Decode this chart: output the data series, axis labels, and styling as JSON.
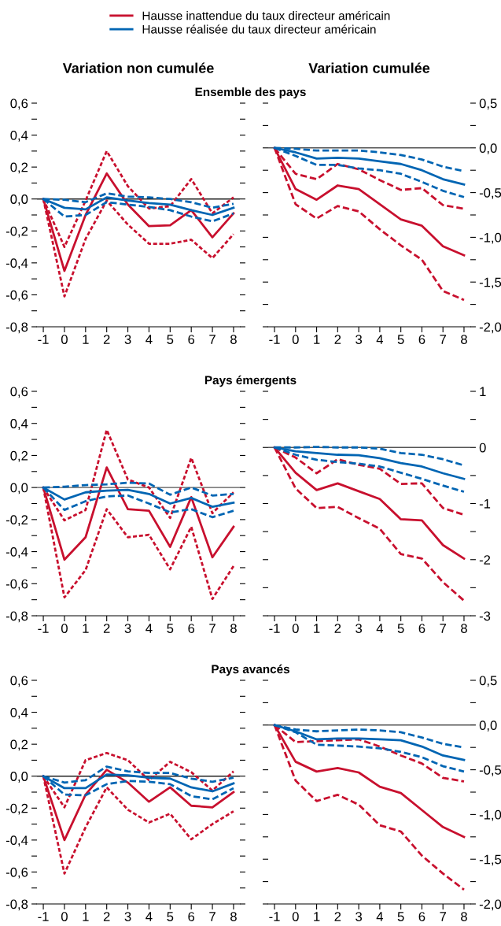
{
  "chart_data": [
    {
      "type": "line",
      "title": "Variation non cumulée",
      "subtitle": "Ensemble des pays",
      "legend": "top",
      "x": [
        -1,
        0,
        1,
        2,
        3,
        4,
        5,
        6,
        7,
        8
      ],
      "xlim": [
        -1.3,
        8.3
      ],
      "xticks": [
        -1,
        0,
        1,
        2,
        3,
        4,
        5,
        6,
        7,
        8
      ],
      "ylim": [
        -0.8,
        0.6
      ],
      "yticks": [
        {
          "value": 0.6,
          "label": "0,6"
        },
        {
          "value": 0.5,
          "label": null
        },
        {
          "value": 0.4,
          "label": "0,4"
        },
        {
          "value": 0.3,
          "label": null
        },
        {
          "value": 0.2,
          "label": "0,2"
        },
        {
          "value": 0.1,
          "label": null
        },
        {
          "value": 0,
          "label": "0,0"
        },
        {
          "value": -0.1,
          "label": null
        },
        {
          "value": -0.2,
          "label": "-0,2"
        },
        {
          "value": -0.3,
          "label": null
        },
        {
          "value": -0.4,
          "label": "-0,4"
        },
        {
          "value": -0.5,
          "label": null
        },
        {
          "value": -0.6,
          "label": "-0,6"
        },
        {
          "value": -0.7,
          "label": null
        },
        {
          "value": -0.8,
          "label": "-0,8"
        }
      ],
      "ref_lines": [
        {
          "axis": "y",
          "value": 0,
          "color": "#222222"
        }
      ],
      "series": [
        {
          "name": "Hausse inattendue du taux directeur américain",
          "color": "#c8102e",
          "line_style": "solid",
          "values": [
            0,
            -0.45,
            -0.1,
            0.16,
            -0.035,
            -0.17,
            -0.165,
            -0.07,
            -0.24,
            -0.09
          ]
        },
        {
          "color": "#c8102e",
          "line_style": "dotted",
          "values": [
            0,
            -0.3,
            -0.01,
            0.3,
            0.08,
            -0.06,
            -0.045,
            0.125,
            -0.09,
            0.01
          ]
        },
        {
          "color": "#c8102e",
          "line_style": "dotted",
          "values": [
            0,
            -0.61,
            -0.25,
            -0.01,
            -0.16,
            -0.28,
            -0.28,
            -0.255,
            -0.37,
            -0.22
          ]
        },
        {
          "name": "Hausse réalisée du taux directeur américain",
          "color": "#0065b3",
          "line_style": "solid",
          "values": [
            0,
            -0.055,
            -0.065,
            0.01,
            -0.01,
            -0.025,
            -0.035,
            -0.07,
            -0.1,
            -0.055
          ]
        },
        {
          "color": "#0065b3",
          "line_style": "dashed",
          "values": [
            0,
            -0.005,
            -0.02,
            0.035,
            0.015,
            0.01,
            0,
            -0.02,
            -0.055,
            -0.03
          ]
        },
        {
          "color": "#0065b3",
          "line_style": "dashed",
          "values": [
            0,
            -0.11,
            -0.1,
            -0.02,
            -0.035,
            -0.05,
            -0.07,
            -0.11,
            -0.14,
            -0.09
          ]
        }
      ]
    },
    {
      "type": "line",
      "title": "Variation cumulée",
      "x": [
        -1,
        0,
        1,
        2,
        3,
        4,
        5,
        6,
        7,
        8
      ],
      "xlim": [
        -1.3,
        8.3
      ],
      "xticks": [
        -1,
        0,
        1,
        2,
        3,
        4,
        5,
        6,
        7,
        8
      ],
      "y2lim": [
        -2.0,
        0.5
      ],
      "y2ticks": [
        {
          "value": 0.5,
          "label": "0,5"
        },
        {
          "value": 0.25,
          "label": null
        },
        {
          "value": 0,
          "label": "0,0"
        },
        {
          "value": -0.25,
          "label": null
        },
        {
          "value": -0.5,
          "label": "-0,5"
        },
        {
          "value": -0.75,
          "label": null
        },
        {
          "value": -1.0,
          "label": "-1,0"
        },
        {
          "value": -1.25,
          "label": null
        },
        {
          "value": -1.5,
          "label": "-1,5"
        },
        {
          "value": -1.75,
          "label": null
        },
        {
          "value": -2.0,
          "label": "-2,0"
        }
      ],
      "ref_lines": [
        {
          "axis": "y2",
          "value": 0,
          "color": "#555555"
        }
      ],
      "series": [
        {
          "axis": "y2",
          "color": "#c8102e",
          "line_style": "solid",
          "values": [
            0,
            -0.46,
            -0.58,
            -0.42,
            -0.46,
            -0.63,
            -0.8,
            -0.87,
            -1.1,
            -1.2
          ]
        },
        {
          "axis": "y2",
          "color": "#c8102e",
          "line_style": "dashed",
          "values": [
            0,
            -0.29,
            -0.35,
            -0.18,
            -0.24,
            -0.36,
            -0.47,
            -0.45,
            -0.64,
            -0.68
          ]
        },
        {
          "axis": "y2",
          "color": "#c8102e",
          "line_style": "dashed",
          "values": [
            0,
            -0.63,
            -0.79,
            -0.65,
            -0.71,
            -0.91,
            -1.09,
            -1.25,
            -1.6,
            -1.7
          ]
        },
        {
          "axis": "y2",
          "color": "#0065b3",
          "line_style": "solid",
          "values": [
            0,
            -0.05,
            -0.12,
            -0.11,
            -0.12,
            -0.15,
            -0.18,
            -0.25,
            -0.35,
            -0.41
          ]
        },
        {
          "axis": "y2",
          "color": "#0065b3",
          "line_style": "dashed",
          "values": [
            0,
            -0.01,
            -0.03,
            -0.03,
            -0.03,
            -0.05,
            -0.08,
            -0.13,
            -0.21,
            -0.26
          ]
        },
        {
          "axis": "y2",
          "color": "#0065b3",
          "line_style": "dashed",
          "values": [
            0,
            -0.09,
            -0.19,
            -0.19,
            -0.23,
            -0.25,
            -0.29,
            -0.38,
            -0.48,
            -0.55
          ]
        }
      ]
    },
    {
      "type": "line",
      "subtitle": "Pays émergents",
      "x": [
        -1,
        0,
        1,
        2,
        3,
        4,
        5,
        6,
        7,
        8
      ],
      "xlim": [
        -1.3,
        8.3
      ],
      "xticks": [
        -1,
        0,
        1,
        2,
        3,
        4,
        5,
        6,
        7,
        8
      ],
      "ylim": [
        -0.8,
        0.6
      ],
      "yticks": [
        {
          "value": 0.6,
          "label": "0,6"
        },
        {
          "value": 0.5,
          "label": null
        },
        {
          "value": 0.4,
          "label": "0,4"
        },
        {
          "value": 0.3,
          "label": null
        },
        {
          "value": 0.2,
          "label": "0,2"
        },
        {
          "value": 0.1,
          "label": null
        },
        {
          "value": 0,
          "label": "0,0"
        },
        {
          "value": -0.1,
          "label": null
        },
        {
          "value": -0.2,
          "label": "-0,2"
        },
        {
          "value": -0.3,
          "label": null
        },
        {
          "value": -0.4,
          "label": "-0,4"
        },
        {
          "value": -0.5,
          "label": null
        },
        {
          "value": -0.6,
          "label": "-0,6"
        },
        {
          "value": -0.7,
          "label": null
        },
        {
          "value": -0.8,
          "label": "-0,8"
        }
      ],
      "ref_lines": [
        {
          "axis": "y",
          "value": 0,
          "color": "#555555"
        }
      ],
      "series": [
        {
          "color": "#c8102e",
          "line_style": "solid",
          "values": [
            0,
            -0.45,
            -0.31,
            0.125,
            -0.135,
            -0.145,
            -0.37,
            -0.06,
            -0.435,
            -0.245
          ]
        },
        {
          "color": "#c8102e",
          "line_style": "dotted",
          "values": [
            0,
            -0.205,
            -0.14,
            0.36,
            0.05,
            0,
            -0.19,
            0.185,
            -0.16,
            -0.03
          ]
        },
        {
          "color": "#c8102e",
          "line_style": "dotted",
          "values": [
            0,
            -0.685,
            -0.515,
            -0.135,
            -0.31,
            -0.295,
            -0.51,
            -0.245,
            -0.695,
            -0.49
          ]
        },
        {
          "color": "#0065b3",
          "line_style": "solid",
          "values": [
            0,
            -0.075,
            -0.03,
            -0.02,
            -0.015,
            -0.04,
            -0.1,
            -0.065,
            -0.12,
            -0.095
          ]
        },
        {
          "color": "#0065b3",
          "line_style": "dashed",
          "values": [
            0,
            0.005,
            0.015,
            0.02,
            0.03,
            0.025,
            -0.045,
            0,
            -0.05,
            -0.04
          ]
        },
        {
          "color": "#0065b3",
          "line_style": "dashed",
          "values": [
            0,
            -0.14,
            -0.085,
            -0.055,
            -0.05,
            -0.1,
            -0.155,
            -0.135,
            -0.185,
            -0.145
          ]
        }
      ]
    },
    {
      "type": "line",
      "x": [
        -1,
        0,
        1,
        2,
        3,
        4,
        5,
        6,
        7,
        8
      ],
      "xlim": [
        -1.3,
        8.3
      ],
      "xticks": [
        -1,
        0,
        1,
        2,
        3,
        4,
        5,
        6,
        7,
        8
      ],
      "y2lim": [
        -3,
        1
      ],
      "y2ticks": [
        1,
        {
          "value": 0.5,
          "label": null
        },
        0,
        {
          "value": -0.5,
          "label": null
        },
        -1,
        {
          "value": -1.5,
          "label": null
        },
        -2,
        {
          "value": -2.5,
          "label": null
        },
        -3
      ],
      "ref_lines": [
        {
          "axis": "y2",
          "value": 0,
          "color": "#555555"
        }
      ],
      "series": [
        {
          "axis": "y2",
          "color": "#c8102e",
          "line_style": "solid",
          "values": [
            0,
            -0.45,
            -0.76,
            -0.64,
            -0.78,
            -0.92,
            -1.28,
            -1.3,
            -1.74,
            -1.98
          ]
        },
        {
          "axis": "y2",
          "color": "#c8102e",
          "line_style": "dashed",
          "values": [
            0,
            -0.18,
            -0.46,
            -0.21,
            -0.31,
            -0.38,
            -0.65,
            -0.64,
            -1.08,
            -1.2
          ]
        },
        {
          "axis": "y2",
          "color": "#c8102e",
          "line_style": "dashed",
          "values": [
            0,
            -0.73,
            -1.08,
            -1.06,
            -1.26,
            -1.45,
            -1.9,
            -1.98,
            -2.4,
            -2.73
          ]
        },
        {
          "axis": "y2",
          "color": "#0065b3",
          "line_style": "solid",
          "values": [
            0,
            -0.07,
            -0.1,
            -0.13,
            -0.14,
            -0.19,
            -0.28,
            -0.34,
            -0.46,
            -0.56
          ]
        },
        {
          "axis": "y2",
          "color": "#0065b3",
          "line_style": "dashed",
          "values": [
            0,
            0,
            0.01,
            0,
            0,
            -0.02,
            -0.1,
            -0.13,
            -0.21,
            -0.32
          ]
        },
        {
          "axis": "y2",
          "color": "#0065b3",
          "line_style": "dashed",
          "values": [
            0,
            -0.13,
            -0.22,
            -0.26,
            -0.29,
            -0.34,
            -0.45,
            -0.56,
            -0.68,
            -0.79
          ]
        }
      ]
    },
    {
      "type": "line",
      "subtitle": "Pays avancés",
      "x": [
        -1,
        0,
        1,
        2,
        3,
        4,
        5,
        6,
        7,
        8
      ],
      "xlim": [
        -1.3,
        8.3
      ],
      "xticks": [
        -1,
        0,
        1,
        2,
        3,
        4,
        5,
        6,
        7,
        8
      ],
      "ylim": [
        -0.8,
        0.6
      ],
      "yticks": [
        {
          "value": 0.6,
          "label": "0,6"
        },
        {
          "value": 0.5,
          "label": null
        },
        {
          "value": 0.4,
          "label": "0,4"
        },
        {
          "value": 0.3,
          "label": null
        },
        {
          "value": 0.2,
          "label": "0,2"
        },
        {
          "value": 0.1,
          "label": null
        },
        {
          "value": 0,
          "label": "0,0"
        },
        {
          "value": -0.1,
          "label": null
        },
        {
          "value": -0.2,
          "label": "-0,2"
        },
        {
          "value": -0.3,
          "label": null
        },
        {
          "value": -0.4,
          "label": "-0,4"
        },
        {
          "value": -0.5,
          "label": null
        },
        {
          "value": -0.6,
          "label": "-0,6"
        },
        {
          "value": -0.7,
          "label": null
        },
        {
          "value": -0.8,
          "label": "-0,8"
        }
      ],
      "ref_lines": [
        {
          "axis": "y",
          "value": 0,
          "color": "#222222"
        }
      ],
      "series": [
        {
          "color": "#c8102e",
          "line_style": "solid",
          "values": [
            0,
            -0.4,
            -0.115,
            0.04,
            -0.04,
            -0.16,
            -0.07,
            -0.185,
            -0.195,
            -0.1
          ]
        },
        {
          "color": "#c8102e",
          "line_style": "dotted",
          "values": [
            0,
            -0.195,
            0.1,
            0.145,
            0.1,
            -0.025,
            0.09,
            0.025,
            -0.09,
            0.03
          ]
        },
        {
          "color": "#c8102e",
          "line_style": "dotted",
          "values": [
            0,
            -0.61,
            -0.32,
            -0.07,
            -0.21,
            -0.29,
            -0.235,
            -0.395,
            -0.3,
            -0.22
          ]
        },
        {
          "color": "#0065b3",
          "line_style": "solid",
          "values": [
            0,
            -0.075,
            -0.075,
            0.01,
            0.005,
            -0.01,
            -0.015,
            -0.07,
            -0.095,
            -0.045
          ]
        },
        {
          "color": "#0065b3",
          "line_style": "dashed",
          "values": [
            0,
            -0.04,
            -0.025,
            0.06,
            0.03,
            0.02,
            0.02,
            -0.015,
            -0.035,
            -0.01
          ]
        },
        {
          "color": "#0065b3",
          "line_style": "dashed",
          "values": [
            0,
            -0.115,
            -0.12,
            -0.05,
            -0.03,
            -0.035,
            -0.05,
            -0.125,
            -0.145,
            -0.075
          ]
        }
      ]
    },
    {
      "type": "line",
      "x": [
        -1,
        0,
        1,
        2,
        3,
        4,
        5,
        6,
        7,
        8
      ],
      "xlim": [
        -1.3,
        8.3
      ],
      "xticks": [
        -1,
        0,
        1,
        2,
        3,
        4,
        5,
        6,
        7,
        8
      ],
      "y2lim": [
        -2.0,
        0.5
      ],
      "y2ticks": [
        {
          "value": 0.5,
          "label": "0,5"
        },
        {
          "value": 0.25,
          "label": null
        },
        {
          "value": 0,
          "label": "0,0"
        },
        {
          "value": -0.25,
          "label": null
        },
        {
          "value": -0.5,
          "label": "-0,5"
        },
        {
          "value": -0.75,
          "label": null
        },
        {
          "value": -1.0,
          "label": "-1,0"
        },
        {
          "value": -1.25,
          "label": null
        },
        {
          "value": -1.5,
          "label": "-1,5"
        },
        {
          "value": -1.75,
          "label": null
        },
        {
          "value": -2.0,
          "label": "-2,0"
        }
      ],
      "ref_lines": [
        {
          "axis": "y2",
          "value": 0,
          "color": "#555555"
        }
      ],
      "series": [
        {
          "axis": "y2",
          "color": "#c8102e",
          "line_style": "solid",
          "values": [
            0,
            -0.41,
            -0.52,
            -0.48,
            -0.53,
            -0.69,
            -0.76,
            -0.95,
            -1.14,
            -1.25
          ]
        },
        {
          "axis": "y2",
          "color": "#c8102e",
          "line_style": "dashed",
          "values": [
            0,
            -0.19,
            -0.18,
            -0.17,
            -0.16,
            -0.24,
            -0.34,
            -0.43,
            -0.59,
            -0.63
          ]
        },
        {
          "axis": "y2",
          "color": "#c8102e",
          "line_style": "dashed",
          "values": [
            0,
            -0.62,
            -0.85,
            -0.78,
            -0.89,
            -1.12,
            -1.19,
            -1.46,
            -1.66,
            -1.84
          ]
        },
        {
          "axis": "y2",
          "color": "#0065b3",
          "line_style": "solid",
          "values": [
            0,
            -0.07,
            -0.16,
            -0.15,
            -0.15,
            -0.16,
            -0.17,
            -0.24,
            -0.34,
            -0.39
          ]
        },
        {
          "axis": "y2",
          "color": "#0065b3",
          "line_style": "dashed",
          "values": [
            0,
            -0.05,
            -0.07,
            -0.06,
            -0.05,
            -0.06,
            -0.08,
            -0.14,
            -0.21,
            -0.25
          ]
        },
        {
          "axis": "y2",
          "color": "#0065b3",
          "line_style": "dashed",
          "values": [
            0,
            -0.08,
            -0.22,
            -0.23,
            -0.24,
            -0.26,
            -0.3,
            -0.36,
            -0.46,
            -0.52
          ]
        }
      ]
    }
  ]
}
